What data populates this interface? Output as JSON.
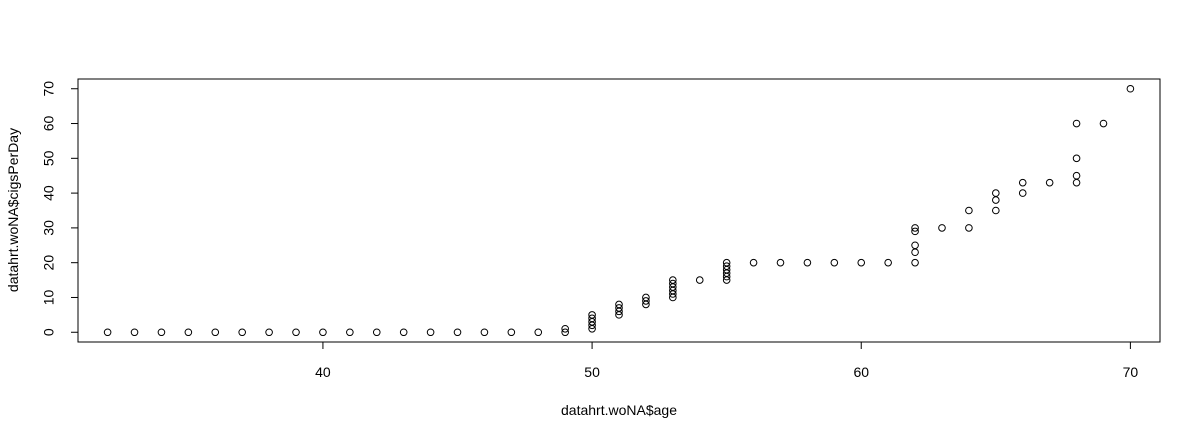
{
  "chart_data": {
    "type": "scatter",
    "title": "",
    "xlabel": "datahrt.woNA$age",
    "ylabel": "datahrt.woNA$cigsPerDay",
    "xlim": [
      30.9,
      71.1
    ],
    "ylim": [
      -2.8,
      72.8
    ],
    "x_ticks": [
      40,
      50,
      60,
      70
    ],
    "y_ticks": [
      0,
      10,
      20,
      30,
      40,
      50,
      60,
      70
    ],
    "grid": false,
    "marker": "open-circle",
    "colors": {
      "marker": "#000000",
      "axis": "#000000",
      "background": "#ffffff"
    },
    "points": [
      {
        "x": 32,
        "y": 0
      },
      {
        "x": 33,
        "y": 0
      },
      {
        "x": 34,
        "y": 0
      },
      {
        "x": 35,
        "y": 0
      },
      {
        "x": 36,
        "y": 0
      },
      {
        "x": 37,
        "y": 0
      },
      {
        "x": 38,
        "y": 0
      },
      {
        "x": 39,
        "y": 0
      },
      {
        "x": 40,
        "y": 0
      },
      {
        "x": 41,
        "y": 0
      },
      {
        "x": 42,
        "y": 0
      },
      {
        "x": 43,
        "y": 0
      },
      {
        "x": 44,
        "y": 0
      },
      {
        "x": 45,
        "y": 0
      },
      {
        "x": 46,
        "y": 0
      },
      {
        "x": 47,
        "y": 0
      },
      {
        "x": 48,
        "y": 0
      },
      {
        "x": 49,
        "y": 0
      },
      {
        "x": 49,
        "y": 1
      },
      {
        "x": 50,
        "y": 1
      },
      {
        "x": 50,
        "y": 2
      },
      {
        "x": 50,
        "y": 3
      },
      {
        "x": 50,
        "y": 4
      },
      {
        "x": 50,
        "y": 5
      },
      {
        "x": 51,
        "y": 5
      },
      {
        "x": 51,
        "y": 6
      },
      {
        "x": 51,
        "y": 7
      },
      {
        "x": 51,
        "y": 8
      },
      {
        "x": 52,
        "y": 8
      },
      {
        "x": 52,
        "y": 9
      },
      {
        "x": 52,
        "y": 10
      },
      {
        "x": 53,
        "y": 10
      },
      {
        "x": 53,
        "y": 11
      },
      {
        "x": 53,
        "y": 12
      },
      {
        "x": 53,
        "y": 13
      },
      {
        "x": 53,
        "y": 14
      },
      {
        "x": 53,
        "y": 15
      },
      {
        "x": 54,
        "y": 15
      },
      {
        "x": 55,
        "y": 15
      },
      {
        "x": 55,
        "y": 16
      },
      {
        "x": 55,
        "y": 17
      },
      {
        "x": 55,
        "y": 18
      },
      {
        "x": 55,
        "y": 19
      },
      {
        "x": 55,
        "y": 20
      },
      {
        "x": 56,
        "y": 20
      },
      {
        "x": 57,
        "y": 20
      },
      {
        "x": 58,
        "y": 20
      },
      {
        "x": 59,
        "y": 20
      },
      {
        "x": 60,
        "y": 20
      },
      {
        "x": 61,
        "y": 20
      },
      {
        "x": 62,
        "y": 20
      },
      {
        "x": 62,
        "y": 23
      },
      {
        "x": 62,
        "y": 25
      },
      {
        "x": 62,
        "y": 29
      },
      {
        "x": 62,
        "y": 30
      },
      {
        "x": 63,
        "y": 30
      },
      {
        "x": 64,
        "y": 30
      },
      {
        "x": 64,
        "y": 35
      },
      {
        "x": 65,
        "y": 35
      },
      {
        "x": 65,
        "y": 38
      },
      {
        "x": 65,
        "y": 40
      },
      {
        "x": 66,
        "y": 40
      },
      {
        "x": 66,
        "y": 43
      },
      {
        "x": 67,
        "y": 43
      },
      {
        "x": 68,
        "y": 43
      },
      {
        "x": 68,
        "y": 45
      },
      {
        "x": 68,
        "y": 50
      },
      {
        "x": 68,
        "y": 60
      },
      {
        "x": 69,
        "y": 60
      },
      {
        "x": 70,
        "y": 70
      }
    ]
  }
}
